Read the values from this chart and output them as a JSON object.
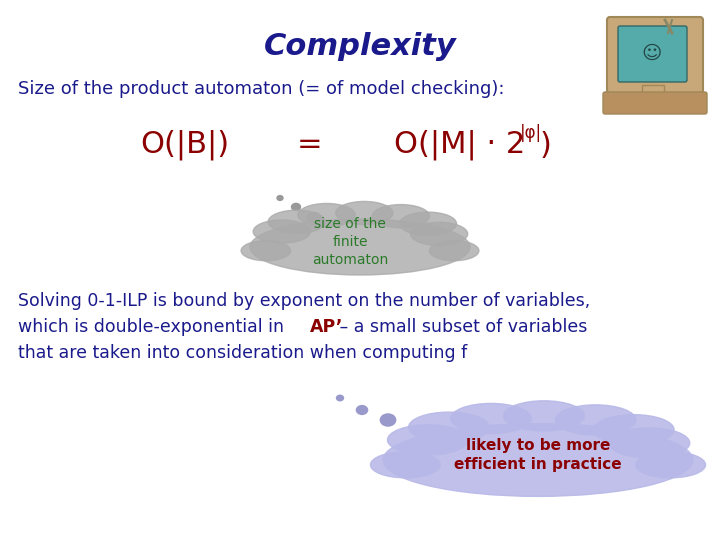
{
  "title": "Complexity",
  "title_color": "#1a1a8c",
  "title_fontsize": 22,
  "bg_color": "#ffffff",
  "subtitle": "Size of the product automaton (= of model checking):",
  "subtitle_color": "#1a1a8c",
  "subtitle_fontsize": 13,
  "formula_left": "O(|B|)",
  "formula_eq": "=",
  "formula_right": "O(|M| · 2",
  "formula_sup": "|φ|",
  "formula_close": ")",
  "formula_color": "#8b0000",
  "formula_fontsize": 22,
  "formula_sup_fontsize": 12,
  "cloud1_text": "size of the\nfinite\nautomaton",
  "cloud1_color": "#2a7a2a",
  "cloud1_bg": "#aaaaaa",
  "cloud2_text": "likely to be more\nefficient in practice",
  "cloud2_color": "#8b0000",
  "cloud2_bg": "#b8b8e8",
  "body_color": "#1a1a8c",
  "body_ap_color": "#8b0000",
  "body_fontsize": 12.5
}
